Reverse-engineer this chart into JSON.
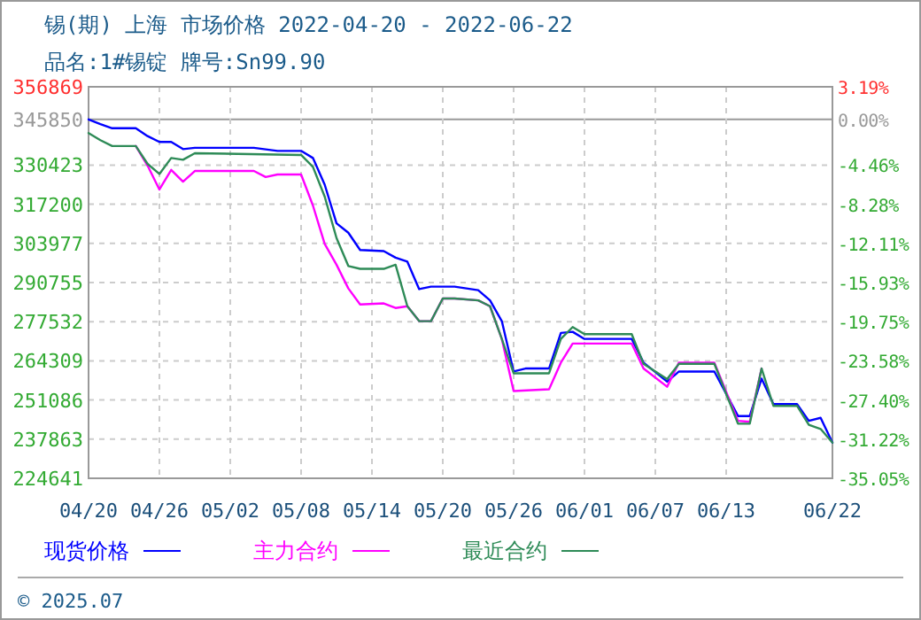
{
  "chart_data": {
    "type": "line",
    "title": "锡(期) 上海 市场价格 2022-04-20 - 2022-06-22",
    "subtitle": "品名:1#锡锭 牌号:Sn99.90",
    "annotations": [
      "© 2025.07"
    ],
    "series": [
      {
        "name": "现货价格",
        "color": "#0000ff",
        "x": [
          "2022-04-20",
          "2022-04-21",
          "2022-04-22",
          "2022-04-24",
          "2022-04-25",
          "2022-04-26",
          "2022-04-27",
          "2022-04-28",
          "2022-04-29",
          "2022-05-04",
          "2022-05-06",
          "2022-05-08",
          "2022-05-09",
          "2022-05-10",
          "2022-05-11",
          "2022-05-12",
          "2022-05-13",
          "2022-05-15",
          "2022-05-16",
          "2022-05-17",
          "2022-05-18",
          "2022-05-19",
          "2022-05-21",
          "2022-05-23",
          "2022-05-24",
          "2022-05-25",
          "2022-05-26",
          "2022-05-27",
          "2022-05-29",
          "2022-05-30",
          "2022-05-31",
          "2022-06-01",
          "2022-06-05",
          "2022-06-06",
          "2022-06-08",
          "2022-06-09",
          "2022-06-12",
          "2022-06-14",
          "2022-06-15",
          "2022-06-16",
          "2022-06-17",
          "2022-06-19",
          "2022-06-20",
          "2022-06-21",
          "2022-06-22"
        ],
        "values": [
          345850,
          344250,
          342870,
          342870,
          340220,
          338240,
          338240,
          335830,
          336250,
          336250,
          335230,
          335230,
          332830,
          323810,
          310770,
          307580,
          301750,
          301390,
          299170,
          297790,
          288530,
          289370,
          289370,
          288170,
          284740,
          277710,
          260700,
          261720,
          261720,
          273750,
          274110,
          271710,
          271710,
          263710,
          257280,
          260700,
          260700,
          245680,
          245680,
          258300,
          249700,
          249700,
          244050,
          245070,
          236660
        ]
      },
      {
        "name": "主力合约",
        "color": "#ff00ff",
        "x": [
          "2022-04-24",
          "2022-04-25",
          "2022-04-26",
          "2022-04-27",
          "2022-04-28",
          "2022-04-29",
          "2022-05-04",
          "2022-05-05",
          "2022-05-06",
          "2022-05-08",
          "2022-05-09",
          "2022-05-10",
          "2022-05-11",
          "2022-05-12",
          "2022-05-13",
          "2022-05-15",
          "2022-05-16",
          "2022-05-17",
          "2022-05-18",
          "2022-05-19",
          "2022-05-20",
          "2022-05-21",
          "2022-05-23",
          "2022-05-24",
          "2022-05-25",
          "2022-05-26",
          "2022-05-29",
          "2022-05-30",
          "2022-05-31",
          "2022-06-01",
          "2022-06-05",
          "2022-06-06",
          "2022-06-08",
          "2022-06-09",
          "2022-06-12",
          "2022-06-14",
          "2022-06-15",
          "2022-06-16"
        ],
        "values": [
          336860,
          330240,
          322190,
          328800,
          324830,
          328440,
          328440,
          326400,
          327240,
          327240,
          316780,
          303800,
          296770,
          288770,
          283360,
          283720,
          282160,
          282760,
          277710,
          277710,
          285350,
          285350,
          284740,
          282760,
          271710,
          254090,
          254690,
          263710,
          270140,
          270140,
          270140,
          261720,
          255570,
          263710,
          263710,
          244050,
          243690,
          261720
        ]
      },
      {
        "name": "最近合约",
        "color": "#2e8b57",
        "x": [
          "2022-04-20",
          "2022-04-21",
          "2022-04-22",
          "2022-04-24",
          "2022-04-25",
          "2022-04-26",
          "2022-04-27",
          "2022-04-28",
          "2022-04-29",
          "2022-05-08",
          "2022-05-09",
          "2022-05-10",
          "2022-05-11",
          "2022-05-12",
          "2022-05-13",
          "2022-05-15",
          "2022-05-16",
          "2022-05-17",
          "2022-05-18",
          "2022-05-19",
          "2022-05-20",
          "2022-05-21",
          "2022-05-23",
          "2022-05-24",
          "2022-05-25",
          "2022-05-26",
          "2022-05-29",
          "2022-05-30",
          "2022-05-31",
          "2022-06-01",
          "2022-06-05",
          "2022-06-06",
          "2022-06-08",
          "2022-06-09",
          "2022-06-12",
          "2022-06-14",
          "2022-06-15",
          "2022-06-16",
          "2022-06-17",
          "2022-06-19",
          "2022-06-20",
          "2022-06-21",
          "2022-06-22"
        ],
        "values": [
          341240,
          338840,
          336860,
          336860,
          330840,
          327420,
          332830,
          332230,
          334450,
          333850,
          329820,
          319780,
          305780,
          296350,
          295380,
          295380,
          296770,
          282760,
          277710,
          277710,
          285350,
          285350,
          284740,
          282760,
          271710,
          260100,
          260100,
          271710,
          275730,
          273320,
          273320,
          263290,
          258120,
          263290,
          263290,
          243090,
          243090,
          261720,
          249100,
          249100,
          242670,
          241290,
          236660
        ]
      }
    ],
    "xlim": [
      "2022-04-20",
      "2022-06-22"
    ],
    "xticks": [
      {
        "value": "2022-04-20",
        "label": "04/20"
      },
      {
        "value": "2022-04-26",
        "label": "04/26"
      },
      {
        "value": "2022-05-02",
        "label": "05/02"
      },
      {
        "value": "2022-05-08",
        "label": "05/08"
      },
      {
        "value": "2022-05-14",
        "label": "05/14"
      },
      {
        "value": "2022-05-20",
        "label": "05/20"
      },
      {
        "value": "2022-05-26",
        "label": "05/26"
      },
      {
        "value": "2022-06-01",
        "label": "06/01"
      },
      {
        "value": "2022-06-07",
        "label": "06/07"
      },
      {
        "value": "2022-06-13",
        "label": "06/13"
      },
      {
        "value": "2022-06-22",
        "label": "06/22"
      }
    ],
    "ylim": [
      224641,
      356869
    ],
    "yticks": [
      356869,
      345850,
      330423,
      317200,
      303977,
      290755,
      277532,
      264309,
      251086,
      237863,
      224641
    ],
    "y2lim": [
      -35.05,
      3.19
    ],
    "y2ticks": [
      {
        "value": 3.19,
        "label": "3.19%"
      },
      {
        "value": 0,
        "label": "0.00%"
      },
      {
        "value": -4.46,
        "label": "-4.46%"
      },
      {
        "value": -8.28,
        "label": "-8.28%"
      },
      {
        "value": -12.11,
        "label": "-12.11%"
      },
      {
        "value": -15.93,
        "label": "-15.93%"
      },
      {
        "value": -19.75,
        "label": "-19.75%"
      },
      {
        "value": -23.58,
        "label": "-23.58%"
      },
      {
        "value": -27.4,
        "label": "-27.40%"
      },
      {
        "value": -31.22,
        "label": "-31.22%"
      },
      {
        "value": -35.05,
        "label": "-35.05%"
      }
    ],
    "grid": true,
    "legend": "bottom"
  }
}
